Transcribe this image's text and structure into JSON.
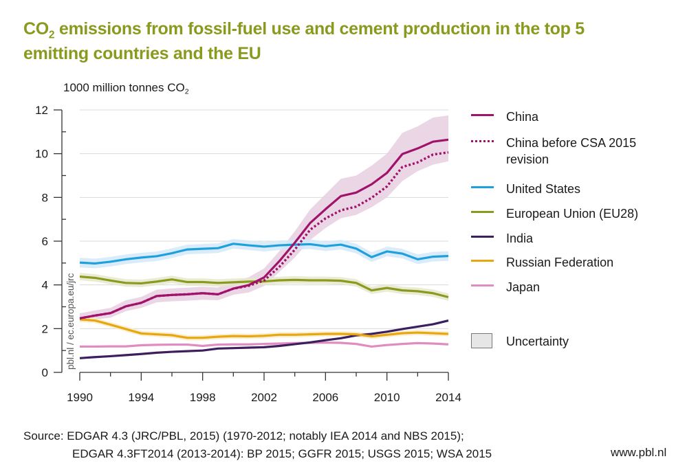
{
  "title": {
    "line1_pre": "CO",
    "line1_sub": "2",
    "line1_post": " emissions from fossil-fuel use and cement production in the top 5",
    "line2": "emitting countries and the EU"
  },
  "unit_label": {
    "pre": "1000 million tonnes CO",
    "sub": "2"
  },
  "watermark": "pbl.nl / ec.europa.eu/jrc",
  "legend": {
    "items": [
      {
        "id": "china",
        "label": "China",
        "style": "solid"
      },
      {
        "id": "china_pre",
        "label_line1": "China before CSA 2015",
        "label_line2": "revision",
        "style": "dotted"
      },
      {
        "id": "us",
        "label": "United States",
        "style": "solid"
      },
      {
        "id": "eu",
        "label": "European Union (EU28)",
        "style": "solid"
      },
      {
        "id": "india",
        "label": "India",
        "style": "solid"
      },
      {
        "id": "russia",
        "label": "Russian Federation",
        "style": "solid"
      },
      {
        "id": "japan",
        "label": "Japan",
        "style": "solid"
      }
    ],
    "uncertainty_label": "Uncertainty"
  },
  "source": {
    "line1": "Source: EDGAR 4.3 (JRC/PBL, 2015) (1970-2012; notably IEA 2014 and NBS 2015);",
    "line2": "EDGAR 4.3FT2014 (2013-2014): BP 2015; GGFR 2015; USGS 2015; WSA 2015"
  },
  "website": "www.pbl.nl",
  "colors": {
    "title": "#8a9a1e",
    "china": "#a0136b",
    "us": "#1ea0dc",
    "eu": "#8a9a1e",
    "india": "#3d1f5e",
    "russia": "#e8a712",
    "japan": "#e08cc0",
    "band_china": "#e6cfe0",
    "band_us": "#d4e9f8",
    "band_eu": "#e6e8cc",
    "band_russia": "#f9ecc8",
    "band_india": "#d9d2e6"
  },
  "chart_data": {
    "type": "line",
    "title": "CO2 emissions from fossil-fuel use and cement production in the top 5 emitting countries and the EU",
    "xlabel": "",
    "ylabel": "1000 million tonnes CO2",
    "xlim": [
      1990,
      2014
    ],
    "ylim": [
      0,
      12
    ],
    "x_ticks": [
      1990,
      1994,
      1998,
      2002,
      2006,
      2010,
      2014
    ],
    "x_minor_step": 2,
    "y_ticks": [
      0,
      2,
      4,
      6,
      8,
      10,
      12
    ],
    "y_minor_step": 1,
    "grid": "horizontal",
    "legend_position": "right",
    "x": [
      1990,
      1991,
      1992,
      1993,
      1994,
      1995,
      1996,
      1997,
      1998,
      1999,
      2000,
      2001,
      2002,
      2003,
      2004,
      2005,
      2006,
      2007,
      2008,
      2009,
      2010,
      2011,
      2012,
      2013,
      2014
    ],
    "series": [
      {
        "id": "us",
        "name": "United States",
        "values": [
          5.02,
          4.98,
          5.06,
          5.17,
          5.25,
          5.31,
          5.45,
          5.62,
          5.65,
          5.68,
          5.88,
          5.81,
          5.75,
          5.81,
          5.84,
          5.86,
          5.77,
          5.84,
          5.66,
          5.27,
          5.53,
          5.43,
          5.17,
          5.29,
          5.32
        ],
        "band": 0.22
      },
      {
        "id": "eu",
        "name": "European Union (EU28)",
        "values": [
          4.38,
          4.32,
          4.2,
          4.09,
          4.07,
          4.15,
          4.25,
          4.13,
          4.13,
          4.09,
          4.12,
          4.15,
          4.16,
          4.21,
          4.23,
          4.21,
          4.21,
          4.19,
          4.09,
          3.75,
          3.86,
          3.75,
          3.71,
          3.62,
          3.44
        ],
        "band": 0.17
      },
      {
        "id": "russia",
        "name": "Russian Federation",
        "values": [
          2.42,
          2.37,
          2.18,
          1.98,
          1.78,
          1.74,
          1.7,
          1.58,
          1.58,
          1.63,
          1.66,
          1.65,
          1.67,
          1.72,
          1.72,
          1.74,
          1.76,
          1.76,
          1.74,
          1.65,
          1.72,
          1.79,
          1.82,
          1.79,
          1.76
        ],
        "band": 0.12
      },
      {
        "id": "japan",
        "name": "Japan",
        "values": [
          1.18,
          1.18,
          1.19,
          1.19,
          1.24,
          1.26,
          1.27,
          1.27,
          1.21,
          1.27,
          1.28,
          1.28,
          1.3,
          1.32,
          1.34,
          1.35,
          1.36,
          1.35,
          1.3,
          1.18,
          1.25,
          1.3,
          1.34,
          1.32,
          1.28
        ],
        "band": 0
      },
      {
        "id": "india",
        "name": "India",
        "values": [
          0.65,
          0.7,
          0.74,
          0.79,
          0.84,
          0.9,
          0.94,
          0.97,
          1.0,
          1.09,
          1.11,
          1.13,
          1.15,
          1.21,
          1.29,
          1.37,
          1.47,
          1.56,
          1.69,
          1.76,
          1.86,
          1.98,
          2.09,
          2.2,
          2.37
        ],
        "band": 0.05
      },
      {
        "id": "china",
        "name": "China",
        "values": [
          2.47,
          2.6,
          2.71,
          3.02,
          3.18,
          3.49,
          3.54,
          3.57,
          3.62,
          3.57,
          3.83,
          3.99,
          4.34,
          5.09,
          5.93,
          6.83,
          7.46,
          8.06,
          8.22,
          8.6,
          9.12,
          9.98,
          10.24,
          10.55,
          10.64
        ],
        "band_lower": [
          2.3,
          2.42,
          2.5,
          2.8,
          2.95,
          3.2,
          3.25,
          3.28,
          3.32,
          3.3,
          3.55,
          3.65,
          3.95,
          4.6,
          5.25,
          6.05,
          6.6,
          7.05,
          7.2,
          7.55,
          8.0,
          8.75,
          9.2,
          9.5,
          9.65
        ],
        "band_upper": [
          2.7,
          2.83,
          2.95,
          3.3,
          3.45,
          3.78,
          3.84,
          3.87,
          3.92,
          3.88,
          4.15,
          4.35,
          4.75,
          5.55,
          6.45,
          7.45,
          8.15,
          8.85,
          9.0,
          9.45,
          10.0,
          10.95,
          11.25,
          11.65,
          11.75
        ]
      },
      {
        "id": "china_pre",
        "name": "China before CSA 2015 revision",
        "style": "dotted",
        "values": [
          2.47,
          2.6,
          2.71,
          3.02,
          3.18,
          3.49,
          3.54,
          3.57,
          3.62,
          3.57,
          3.83,
          3.96,
          4.2,
          4.83,
          5.61,
          6.52,
          7.04,
          7.41,
          7.58,
          7.98,
          8.5,
          9.39,
          9.6,
          9.96,
          10.06
        ]
      }
    ]
  }
}
